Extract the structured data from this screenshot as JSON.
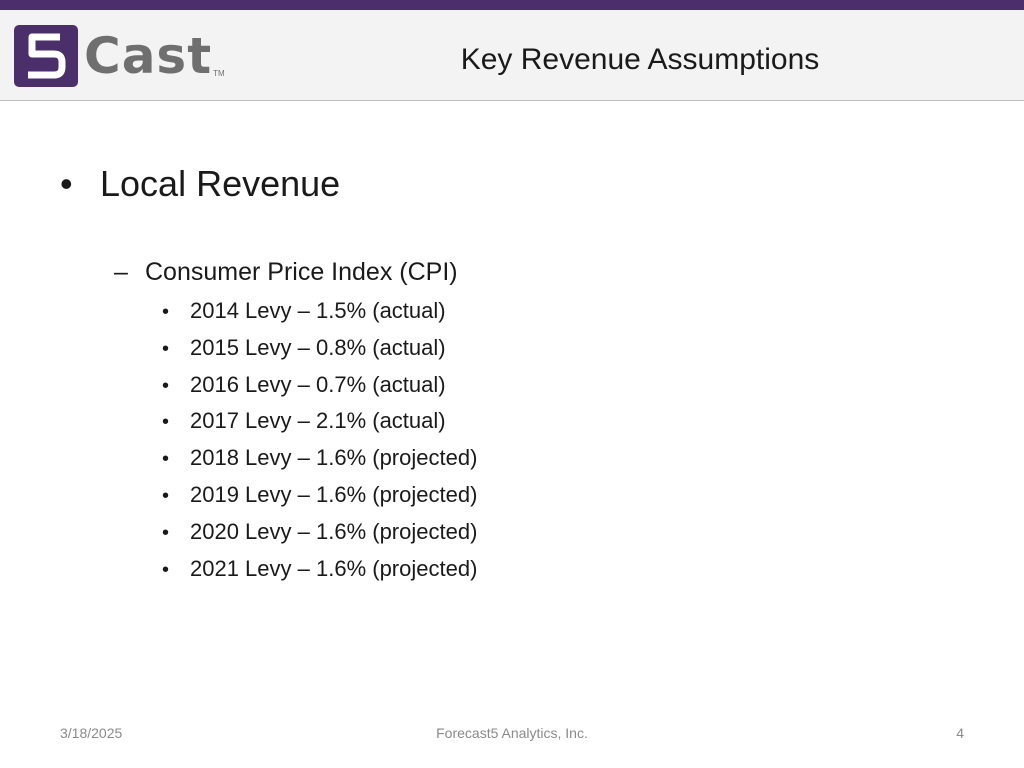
{
  "header": {
    "logo_text": "Cast",
    "logo_mark": "5",
    "logo_tm": "TM",
    "title": "Key Revenue Assumptions"
  },
  "content": {
    "section_title": "Local Revenue",
    "subsection_title": "Consumer Price Index (CPI)",
    "items": [
      {
        "label": "2014 Levy – 1.5% (actual)"
      },
      {
        "label": "2015 Levy – 0.8% (actual)"
      },
      {
        "label": "2016 Levy – 0.7% (actual)"
      },
      {
        "label": "2017 Levy – 2.1% (actual)"
      },
      {
        "label": "2018 Levy – 1.6% (projected)"
      },
      {
        "label": "2019 Levy – 1.6% (projected)"
      },
      {
        "label": "2020 Levy – 1.6% (projected)"
      },
      {
        "label": "2021 Levy – 1.6% (projected)"
      }
    ]
  },
  "footer": {
    "date": "3/18/2025",
    "company": "Forecast5 Analytics, Inc.",
    "page_number": "4"
  },
  "colors": {
    "brand_purple": "#4a2f6b",
    "logo_gray": "#6f6f6f",
    "header_bg": "#f3f3f3",
    "footer_text": "#8a8a8a"
  }
}
